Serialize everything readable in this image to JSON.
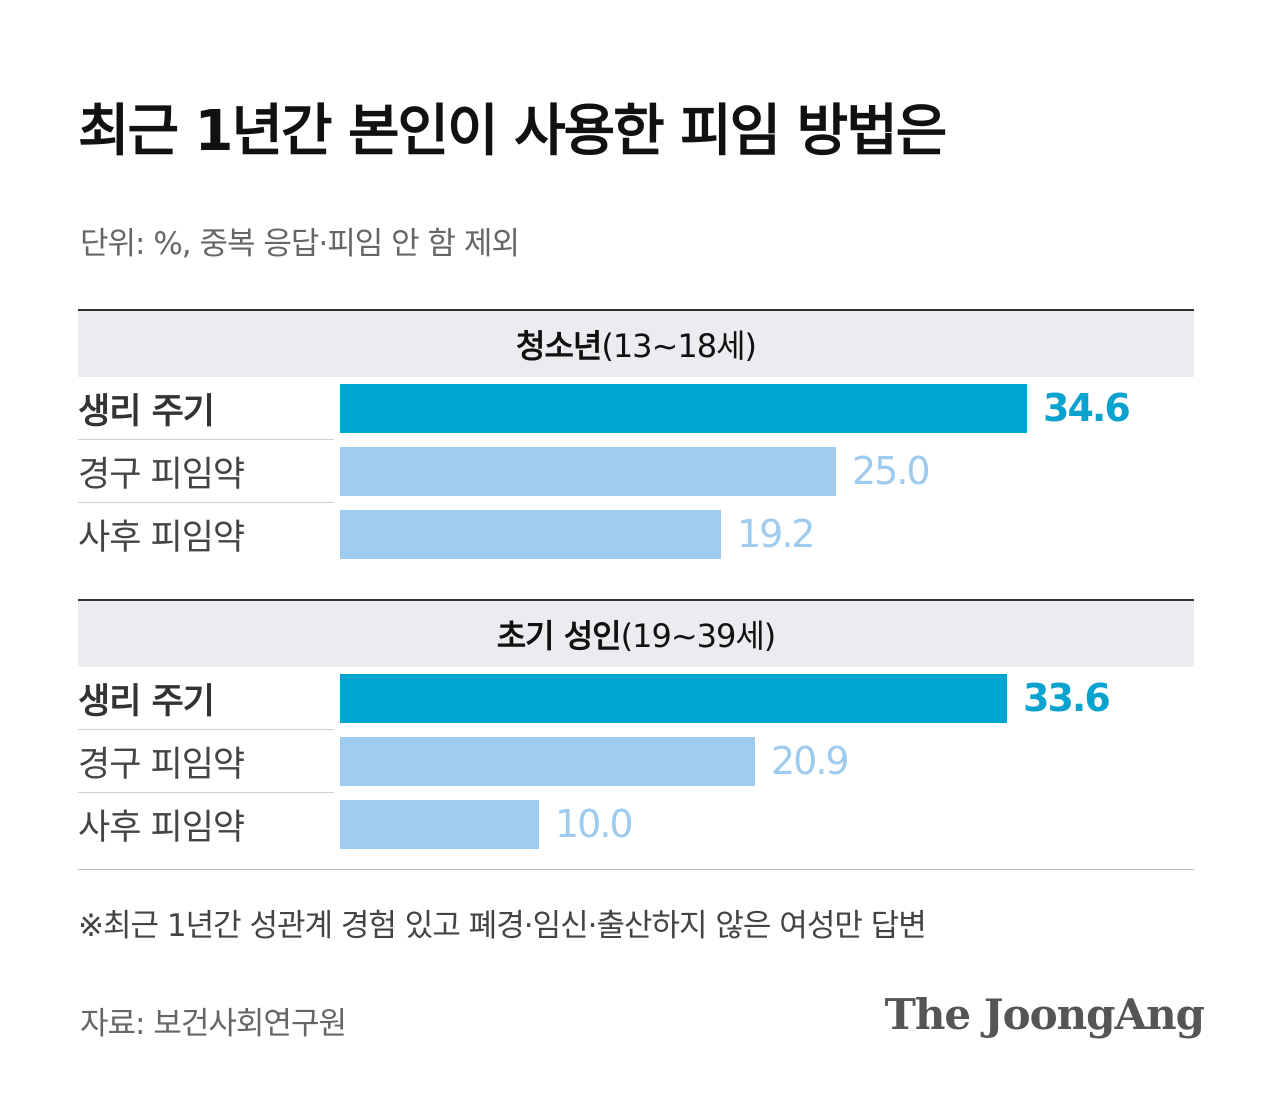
{
  "title": "최근 1년간 본인이 사용한 피임 방법은",
  "subtitle": "단위: %, 중복 응답·피임 안 함 제외",
  "colors": {
    "primary": "#00a6d2",
    "secondary": "#9ecbee"
  },
  "chart_data": {
    "type": "bar",
    "orientation": "horizontal",
    "unit": "%",
    "xlim": [
      0,
      40
    ],
    "groups": [
      {
        "name_bold": "청소년",
        "name_rest": "(13~18세)",
        "categories": [
          "생리 주기",
          "경구 피임약",
          "사후 피임약"
        ],
        "values": [
          34.6,
          25.0,
          19.2
        ],
        "labels": [
          "34.6",
          "25.0",
          "19.2"
        ]
      },
      {
        "name_bold": "초기 성인",
        "name_rest": "(19~39세)",
        "categories": [
          "생리 주기",
          "경구 피임약",
          "사후 피임약"
        ],
        "values": [
          33.6,
          20.9,
          10.0
        ],
        "labels": [
          "33.6",
          "20.9",
          "10.0"
        ]
      }
    ]
  },
  "note": "※최근 1년간 성관계 경험 있고 폐경·임신·출산하지 않은 여성만 답변",
  "source": "자료: 보건사회연구원",
  "brand": "The JoongAng"
}
